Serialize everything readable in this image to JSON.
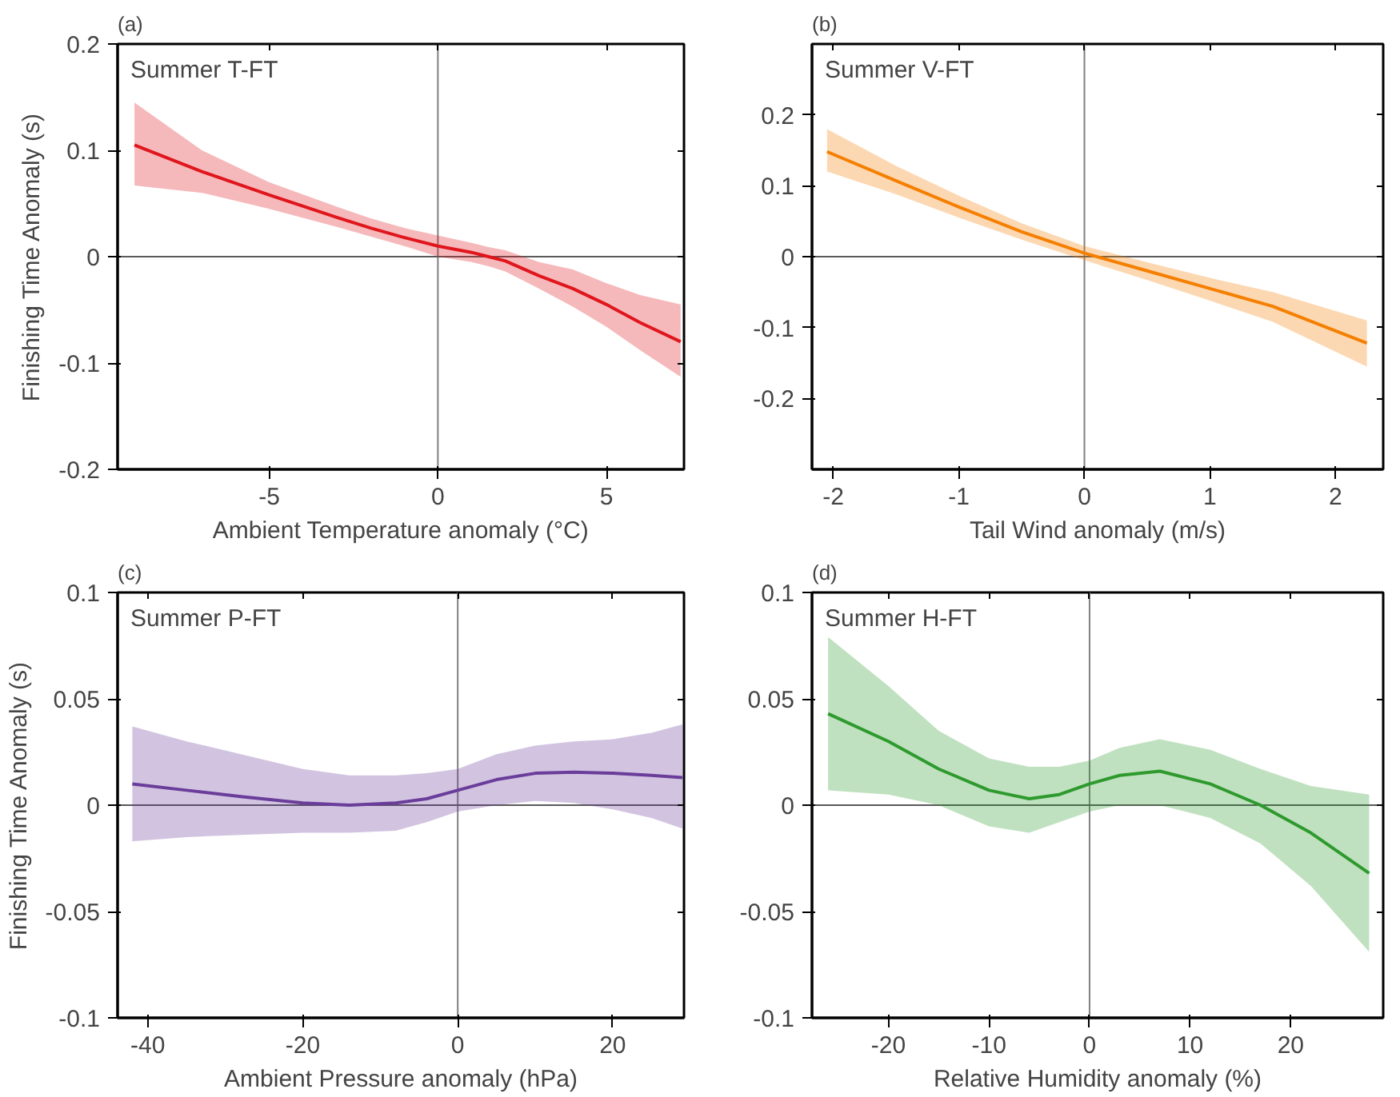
{
  "chart_data": [
    {
      "type": "line",
      "title": "(a)",
      "xlabel": "Ambient Temperature anomaly (°C)",
      "ylabel": "Finishing Time Anomaly (s)",
      "annotations": [
        "Summer T-FT"
      ],
      "xlim": [
        -9.5,
        7.3
      ],
      "ylim": [
        -0.2,
        0.2
      ],
      "xticks": [
        -5,
        0,
        5
      ],
      "yticks": [
        -0.2,
        -0.1,
        0,
        0.1,
        0.2
      ],
      "grid": false,
      "ref_lines": [
        {
          "axis": "x",
          "value": 0,
          "color": "#808080"
        },
        {
          "axis": "y",
          "value": 0,
          "color": "#5a5a5a"
        }
      ],
      "series": [
        {
          "color": "#e0161d",
          "x": [
            -9,
            -7,
            -5,
            -3,
            -2,
            -1,
            0,
            1,
            1.5,
            2,
            3,
            4,
            5,
            6,
            7.2
          ],
          "values": [
            0.105,
            0.08,
            0.058,
            0.037,
            0.027,
            0.018,
            0.01,
            0.004,
            0.0,
            -0.004,
            -0.018,
            -0.03,
            -0.045,
            -0.062,
            -0.08
          ],
          "lower": [
            0.067,
            0.06,
            0.045,
            0.028,
            0.019,
            0.01,
            0.0,
            -0.005,
            -0.009,
            -0.014,
            -0.03,
            -0.047,
            -0.066,
            -0.088,
            -0.113
          ],
          "upper": [
            0.145,
            0.1,
            0.07,
            0.047,
            0.036,
            0.027,
            0.02,
            0.013,
            0.009,
            0.006,
            -0.005,
            -0.012,
            -0.025,
            -0.036,
            -0.045
          ]
        }
      ]
    },
    {
      "type": "line",
      "title": "(b)",
      "xlabel": "Tail Wind anomaly (m/s)",
      "annotations": [
        "Summer V-FT"
      ],
      "xlim": [
        -2.17,
        2.38
      ],
      "ylim": [
        -0.3,
        0.3
      ],
      "xticks": [
        -2,
        -1,
        0,
        1,
        2
      ],
      "yticks": [
        -0.2,
        -0.1,
        0,
        0.1,
        0.2
      ],
      "grid": false,
      "ref_lines": [
        {
          "axis": "x",
          "value": 0,
          "color": "#808080"
        },
        {
          "axis": "y",
          "value": 0,
          "color": "#5a5a5a"
        }
      ],
      "series": [
        {
          "color": "#f57f00",
          "x": [
            -2.05,
            -1.5,
            -1,
            -0.5,
            0,
            0.5,
            1,
            1.5,
            2.25
          ],
          "values": [
            0.148,
            0.107,
            0.07,
            0.035,
            0.005,
            -0.02,
            -0.045,
            -0.07,
            -0.122
          ],
          "lower": [
            0.12,
            0.088,
            0.055,
            0.024,
            -0.005,
            -0.033,
            -0.062,
            -0.092,
            -0.155
          ],
          "upper": [
            0.18,
            0.128,
            0.086,
            0.047,
            0.015,
            -0.008,
            -0.03,
            -0.05,
            -0.09
          ]
        }
      ]
    },
    {
      "type": "line",
      "title": "(c)",
      "xlabel": "Ambient Pressure anomaly (hPa)",
      "ylabel": "Finishing Time Anomaly (s)",
      "annotations": [
        "Summer P-FT"
      ],
      "xlim": [
        -43.9,
        29.2
      ],
      "ylim": [
        -0.1,
        0.1
      ],
      "xticks": [
        -40,
        -20,
        0,
        20
      ],
      "yticks": [
        -0.1,
        -0.05,
        0,
        0.05,
        0.1
      ],
      "grid": false,
      "ref_lines": [
        {
          "axis": "x",
          "value": 0,
          "color": "#808080"
        },
        {
          "axis": "y",
          "value": 0,
          "color": "#5a5a5a"
        }
      ],
      "series": [
        {
          "color": "#6a3d9a",
          "x": [
            -42,
            -35,
            -28,
            -20,
            -14,
            -8,
            -4,
            0,
            5,
            10,
            15,
            20,
            25,
            29
          ],
          "values": [
            0.01,
            0.007,
            0.004,
            0.001,
            0.0,
            0.001,
            0.003,
            0.007,
            0.012,
            0.015,
            0.0155,
            0.015,
            0.014,
            0.013
          ],
          "lower": [
            -0.017,
            -0.015,
            -0.014,
            -0.013,
            -0.013,
            -0.012,
            -0.008,
            -0.003,
            0.0,
            0.002,
            0.001,
            -0.002,
            -0.006,
            -0.011
          ],
          "upper": [
            0.037,
            0.03,
            0.024,
            0.017,
            0.014,
            0.014,
            0.015,
            0.017,
            0.024,
            0.028,
            0.03,
            0.031,
            0.034,
            0.038
          ]
        }
      ]
    },
    {
      "type": "line",
      "title": "(d)",
      "xlabel": "Relative Humidity anomaly (%)",
      "annotations": [
        "Summer H-FT"
      ],
      "xlim": [
        -27.6,
        29.2
      ],
      "ylim": [
        -0.1,
        0.1
      ],
      "xticks": [
        -20,
        -10,
        0,
        10,
        20
      ],
      "yticks": [
        -0.1,
        -0.05,
        0,
        0.05,
        0.1
      ],
      "grid": false,
      "ref_lines": [
        {
          "axis": "x",
          "value": 0,
          "color": "#808080"
        },
        {
          "axis": "y",
          "value": 0,
          "color": "#5a5a5a"
        }
      ],
      "series": [
        {
          "color": "#2e9a2e",
          "x": [
            -26,
            -20,
            -15,
            -10,
            -6,
            -3,
            0,
            3,
            7,
            12,
            17,
            22,
            27.8
          ],
          "values": [
            0.043,
            0.03,
            0.017,
            0.007,
            0.003,
            0.005,
            0.01,
            0.014,
            0.016,
            0.01,
            0.0,
            -0.013,
            -0.032
          ],
          "lower": [
            0.007,
            0.005,
            0.0,
            -0.01,
            -0.013,
            -0.008,
            -0.003,
            0.0,
            0.0,
            -0.006,
            -0.018,
            -0.038,
            -0.069
          ],
          "upper": [
            0.079,
            0.056,
            0.035,
            0.022,
            0.018,
            0.018,
            0.021,
            0.027,
            0.031,
            0.026,
            0.017,
            0.009,
            0.005
          ]
        }
      ]
    }
  ]
}
